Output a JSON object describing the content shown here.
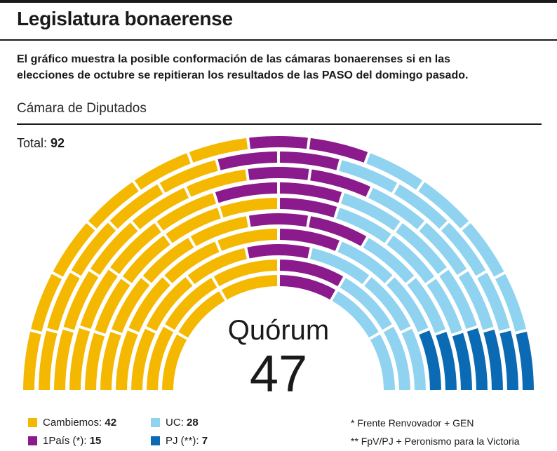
{
  "title": "Legislatura bonaerense",
  "description_line1": "El gráfico muestra la posible conformación de las cámaras bonaerenses si en las",
  "description_line2": "elecciones de octubre se repitieran los resultados de las PASO  del domingo pasado.",
  "chamber_label": "Cámara de Diputados",
  "total_label": "Total:",
  "total_value": "92",
  "quorum_label": "Quórum",
  "quorum_value": "47",
  "legend": [
    {
      "label": "Cambiemos:",
      "value": "42",
      "color": "#f5b800"
    },
    {
      "label": "1País (*):",
      "value": "15",
      "color": "#8b1a8c"
    },
    {
      "label": "UC:",
      "value": "28",
      "color": "#8fd3f0"
    },
    {
      "label": "PJ (**):",
      "value": "7",
      "color": "#0a6ab4"
    }
  ],
  "notes": [
    "* Frente Renvovador + GEN",
    "** FpV/PJ + Peronismo para la Victoria"
  ],
  "chart_data": {
    "type": "parliament",
    "total": 92,
    "quorum": 47,
    "series": [
      {
        "name": "Cambiemos",
        "value": 42,
        "color": "#f5b800"
      },
      {
        "name": "1País (*)",
        "value": 15,
        "color": "#8b1a8c"
      },
      {
        "name": "UC",
        "value": 28,
        "color": "#8fd3f0"
      },
      {
        "name": "PJ (**)",
        "value": 7,
        "color": "#0a6ab4"
      }
    ]
  }
}
